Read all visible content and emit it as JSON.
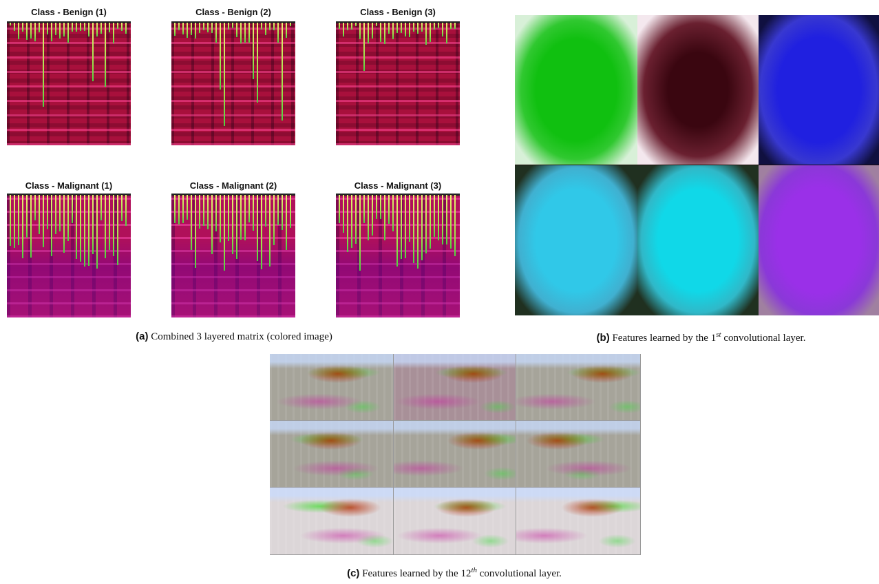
{
  "panel_a": {
    "images": [
      {
        "title": "Class - Benign (1)"
      },
      {
        "title": "Class - Benign (2)"
      },
      {
        "title": "Class - Benign (3)"
      },
      {
        "title": "Class - Malignant (1)"
      },
      {
        "title": "Class - Malignant (2)"
      },
      {
        "title": "Class - Malignant (3)"
      }
    ],
    "caption": {
      "label": "(a)",
      "text": "Combined 3 layered matrix (colored image)"
    }
  },
  "panel_b": {
    "caption": {
      "label": "(b)",
      "text_before": "Features learned by the 1",
      "superscript": "st",
      "text_after": " convolutional layer."
    }
  },
  "panel_c": {
    "caption": {
      "label": "(c)",
      "text_before": "Features learned by the 12",
      "superscript": "th",
      "text_after": " convolutional layer."
    }
  }
}
